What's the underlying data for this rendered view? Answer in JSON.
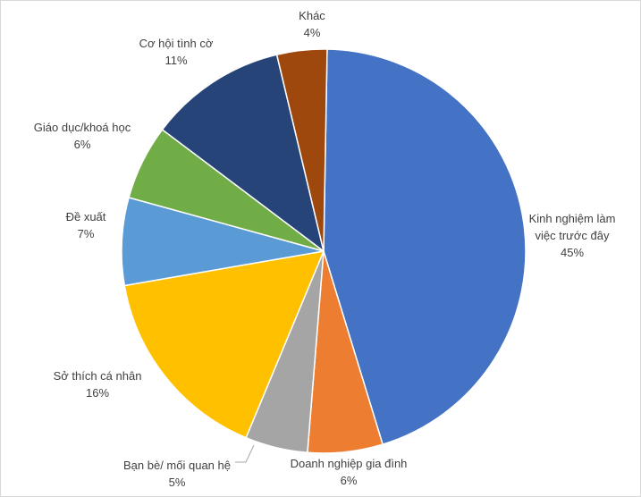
{
  "chart_data": {
    "type": "pie",
    "title": "",
    "slices": [
      {
        "label": "Kinh nghiệm làm việc trước đây",
        "label_lines": [
          "Kinh nghiệm làm",
          "việc trước đây"
        ],
        "value": 45,
        "pct_label": "45%",
        "color": "#4472C4"
      },
      {
        "label": "Doanh nghiệp gia đình",
        "label_lines": [
          "Doanh nghiệp gia đình"
        ],
        "value": 6,
        "pct_label": "6%",
        "color": "#ED7D31"
      },
      {
        "label": "Bạn bè/ mối quan hệ",
        "label_lines": [
          "Bạn bè/ mối quan hệ"
        ],
        "value": 5,
        "pct_label": "5%",
        "color": "#A5A5A5"
      },
      {
        "label": "Sở thích cá nhân",
        "label_lines": [
          "Sở thích cá nhân"
        ],
        "value": 16,
        "pct_label": "16%",
        "color": "#FFC000"
      },
      {
        "label": "Đề xuất",
        "label_lines": [
          "Đề xuất"
        ],
        "value": 7,
        "pct_label": "7%",
        "color": "#5B9BD5"
      },
      {
        "label": "Giáo dục/khoá học",
        "label_lines": [
          "Giáo dục/khoá học"
        ],
        "value": 6,
        "pct_label": "6%",
        "color": "#70AD47"
      },
      {
        "label": "Cơ hội tình cờ",
        "label_lines": [
          "Cơ hội tình cờ"
        ],
        "value": 11,
        "pct_label": "11%",
        "color": "#264478"
      },
      {
        "label": "Khác",
        "label_lines": [
          "Khác"
        ],
        "value": 4,
        "pct_label": "4%",
        "color": "#9E480E"
      }
    ]
  }
}
